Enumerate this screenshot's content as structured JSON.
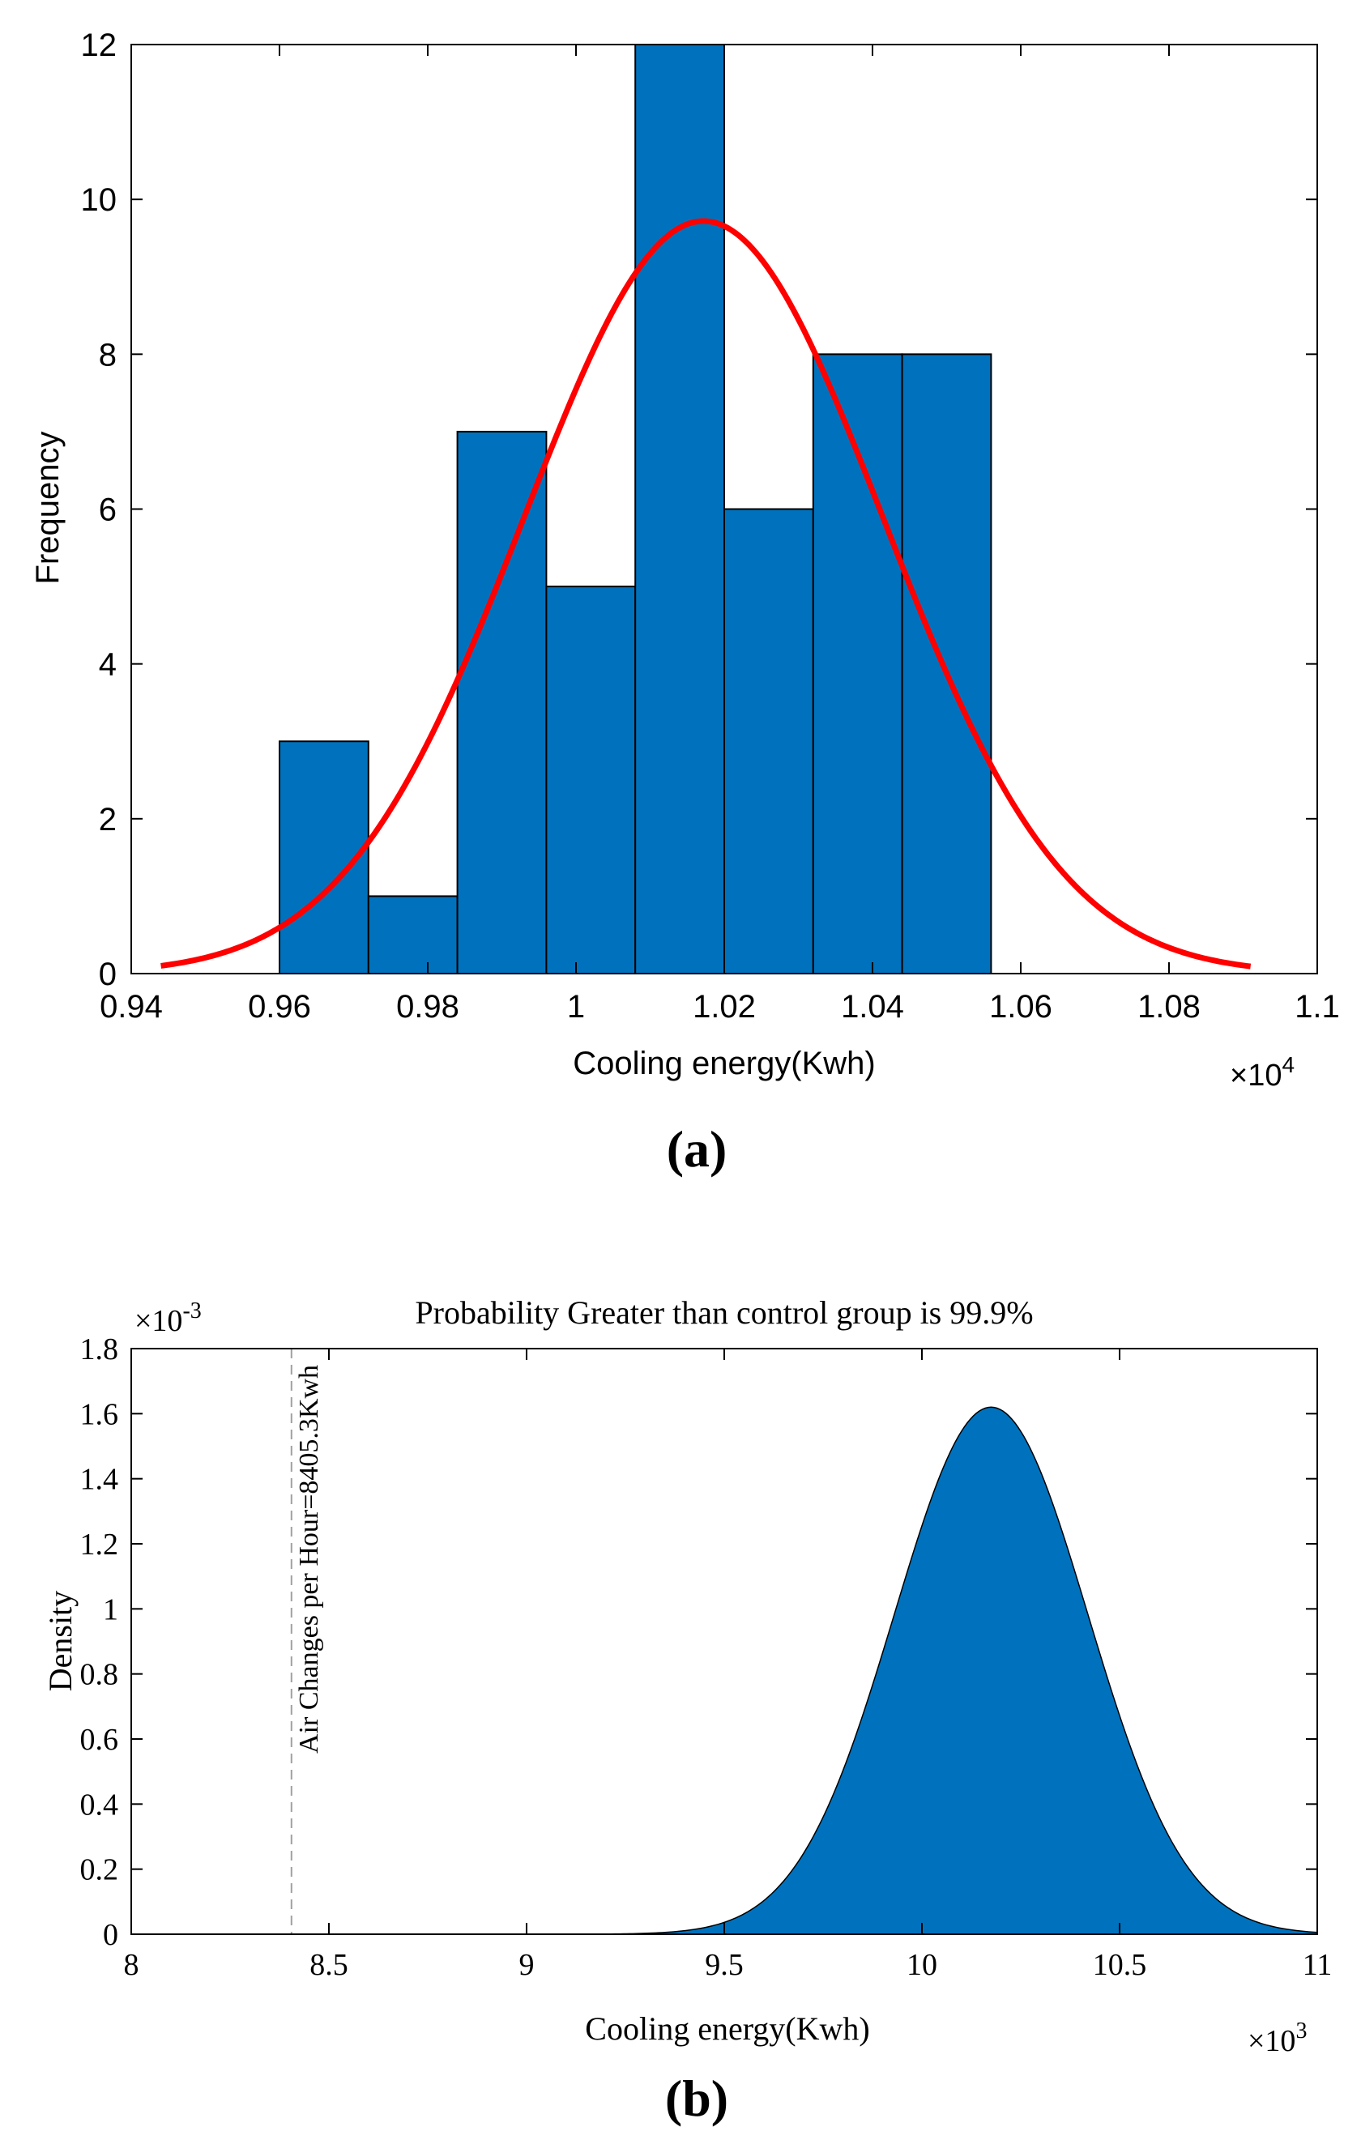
{
  "colors": {
    "bar_fill": "#0072BD",
    "fit_curve": "#FF0000",
    "density_fill": "#0072BD",
    "axis": "#000000",
    "ref_line": "#A0A0A0"
  },
  "chart_data": [
    {
      "type": "bar",
      "panel_label": "(a)",
      "title": "",
      "xlabel": "Cooling energy(Kwh)",
      "ylabel": "Frequency",
      "x_exponent_label": "×10",
      "x_exponent_power": "4",
      "xlim": [
        0.94,
        1.1
      ],
      "ylim": [
        0,
        12
      ],
      "xticks": [
        0.94,
        0.96,
        0.98,
        1.0,
        1.02,
        1.04,
        1.06,
        1.08,
        1.1
      ],
      "xtick_labels": [
        "0.94",
        "0.96",
        "0.98",
        "1",
        "1.02",
        "1.04",
        "1.06",
        "1.08",
        "1.1"
      ],
      "yticks": [
        0,
        2,
        4,
        6,
        8,
        10,
        12
      ],
      "ytick_labels": [
        "0",
        "2",
        "4",
        "6",
        "8",
        "10",
        "12"
      ],
      "bins": [
        {
          "x0": 0.96,
          "x1": 0.972,
          "count": 3
        },
        {
          "x0": 0.972,
          "x1": 0.984,
          "count": 1
        },
        {
          "x0": 0.984,
          "x1": 0.996,
          "count": 7
        },
        {
          "x0": 0.996,
          "x1": 1.008,
          "count": 5
        },
        {
          "x0": 1.008,
          "x1": 1.02,
          "count": 12
        },
        {
          "x0": 1.02,
          "x1": 1.032,
          "count": 6
        },
        {
          "x0": 1.032,
          "x1": 1.044,
          "count": 8
        },
        {
          "x0": 1.044,
          "x1": 1.056,
          "count": 8
        }
      ],
      "fit": {
        "type": "normal",
        "mean": 1.0172,
        "sd": 0.0242,
        "peak": 9.72,
        "x_range": [
          0.944,
          1.091
        ]
      },
      "grid": false
    },
    {
      "type": "area",
      "panel_label": "(b)",
      "title": "Probability Greater than control group is 99.9%",
      "xlabel": "Cooling energy(Kwh)",
      "ylabel": "Density",
      "x_exponent_label": "×10",
      "x_exponent_power": "3",
      "y_exponent_label": "×10",
      "y_exponent_power": "-3",
      "xlim": [
        8,
        11
      ],
      "ylim": [
        0,
        1.8
      ],
      "xticks": [
        8,
        8.5,
        9,
        9.5,
        10,
        10.5,
        11
      ],
      "xtick_labels": [
        "8",
        "8.5",
        "9",
        "9.5",
        "10",
        "10.5",
        "11"
      ],
      "yticks": [
        0,
        0.2,
        0.4,
        0.6,
        0.8,
        1.0,
        1.2,
        1.4,
        1.6,
        1.8
      ],
      "ytick_labels": [
        "0",
        "0.2",
        "0.4",
        "0.6",
        "0.8",
        "1",
        "1.2",
        "1.4",
        "1.6",
        "1.8"
      ],
      "density": {
        "type": "normal",
        "mean": 10.175,
        "sd": 0.245,
        "peak": 1.62,
        "x_range": [
          8,
          11
        ]
      },
      "reference": {
        "x": 8.4053,
        "label": "Air Changes per Hour=8405.3Kwh"
      },
      "grid": false
    }
  ]
}
